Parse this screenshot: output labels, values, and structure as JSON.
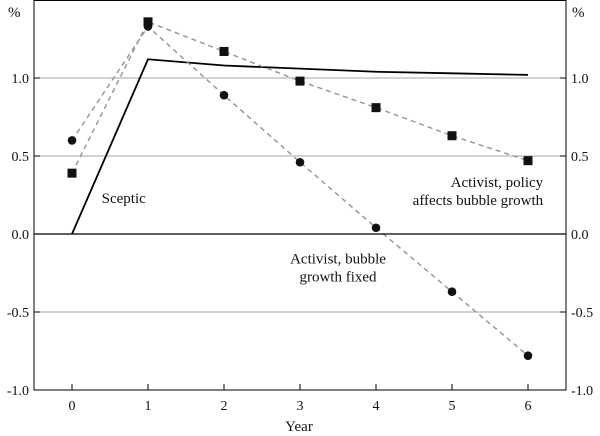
{
  "chart_data": {
    "type": "line",
    "xlabel": "Year",
    "ylabel_left": "%",
    "ylabel_right": "%",
    "x": [
      0,
      1,
      2,
      3,
      4,
      5,
      6
    ],
    "x_tick_labels": [
      "0",
      "1",
      "2",
      "3",
      "4",
      "5",
      "6"
    ],
    "ylim": [
      -1.0,
      1.5
    ],
    "y_ticks": [
      -1.0,
      -0.5,
      0.0,
      0.5,
      1.0
    ],
    "y_tick_labels": [
      "-1.0",
      "-0.5",
      "0.0",
      "0.5",
      "1.0"
    ],
    "grid": "horizontal",
    "series": [
      {
        "name": "Sceptic",
        "style": "solid",
        "marker": "none",
        "color": "#000000",
        "x": [
          0,
          1,
          2,
          3,
          4,
          5,
          6
        ],
        "values": [
          0.0,
          1.12,
          1.08,
          1.06,
          1.04,
          1.03,
          1.02
        ]
      },
      {
        "name": "Activist, policy affects bubble growth",
        "style": "dashed",
        "marker": "square",
        "color": "#999999",
        "x": [
          0,
          1,
          2,
          3,
          4,
          5,
          6
        ],
        "values": [
          0.39,
          1.36,
          1.17,
          0.98,
          0.81,
          0.63,
          0.47
        ]
      },
      {
        "name": "Activist, bubble growth fixed",
        "style": "dashed",
        "marker": "circle",
        "color": "#999999",
        "x": [
          0,
          1,
          2,
          3,
          4,
          5,
          6
        ],
        "values": [
          0.6,
          1.33,
          0.89,
          0.46,
          0.04,
          -0.37,
          -0.78
        ]
      }
    ],
    "annotations": [
      {
        "lines": [
          "Sceptic"
        ],
        "anchor": "start",
        "at_x": 0.39,
        "at_y": 0.2
      },
      {
        "lines": [
          "Activist, policy",
          "affects bubble growth"
        ],
        "anchor": "end",
        "at_x": 6.2,
        "at_y": 0.3
      },
      {
        "lines": [
          "Activist, bubble",
          "growth fixed"
        ],
        "anchor": "middle",
        "at_x": 3.5,
        "at_y": -0.19
      }
    ]
  }
}
